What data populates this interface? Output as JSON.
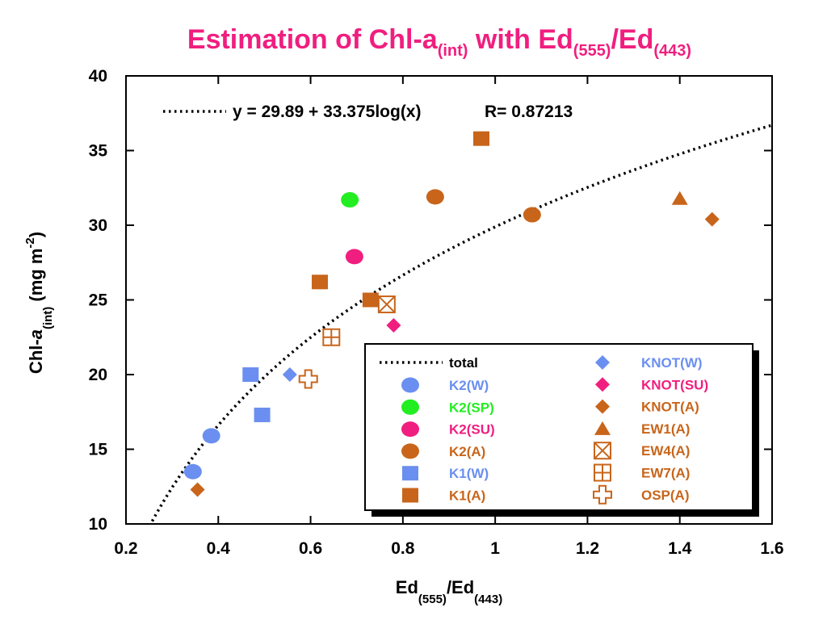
{
  "title": {
    "prefix": "Estimation of Chl-a",
    "sub1": "(int)",
    "middle": " with Ed",
    "sub2": "(555)",
    "slash": "/Ed",
    "sub3": "(443)"
  },
  "xlabel": {
    "base1": "Ed",
    "sub1": "(555)",
    "slash": "/Ed",
    "sub2": "(443)"
  },
  "ylabel": {
    "base": "Chl-",
    "italic": "a",
    "sub": "(int)",
    "unit": " (mg m",
    "sup": "-2",
    "close": ")"
  },
  "equation": {
    "formula": "y = 29.89 + 33.375log(x)",
    "r_text": "R= 0.87213"
  },
  "colors": {
    "title": "#f01e7f",
    "W": "#6b8ff0",
    "SP": "#22ee22",
    "SU": "#f01e7f",
    "A": "#c8651b"
  },
  "chart_data": {
    "type": "scatter",
    "xlim": [
      0.2,
      1.6
    ],
    "ylim": [
      10,
      40
    ],
    "x_ticks": [
      0.2,
      0.4,
      0.6,
      0.8,
      1,
      1.2,
      1.4,
      1.6
    ],
    "x_tick_labels": [
      "0.2",
      "0.4",
      "0.6",
      "0.8",
      "1",
      "1.2",
      "1.4",
      "1.6"
    ],
    "y_ticks": [
      10,
      15,
      20,
      25,
      30,
      35,
      40
    ],
    "y_tick_labels": [
      "10",
      "15",
      "20",
      "25",
      "30",
      "35",
      "40"
    ],
    "grid": false,
    "legend_position": "bottom-right",
    "fit": {
      "name": "total",
      "intercept": 29.89,
      "slope": 33.375,
      "r": 0.87213,
      "x_range": [
        0.25,
        1.6
      ]
    },
    "series": [
      {
        "name": "K2(W)",
        "marker": "circle",
        "color": "#6b8ff0",
        "points": [
          [
            0.345,
            13.5
          ],
          [
            0.385,
            15.9
          ]
        ]
      },
      {
        "name": "K2(SP)",
        "marker": "circle",
        "color": "#22ee22",
        "points": [
          [
            0.685,
            31.7
          ]
        ]
      },
      {
        "name": "K2(SU)",
        "marker": "circle",
        "color": "#f01e7f",
        "points": [
          [
            0.695,
            27.9
          ]
        ]
      },
      {
        "name": "K2(A)",
        "marker": "circle",
        "color": "#c8651b",
        "points": [
          [
            0.87,
            31.9
          ],
          [
            1.08,
            30.7
          ]
        ]
      },
      {
        "name": "K1(W)",
        "marker": "square",
        "color": "#6b8ff0",
        "points": [
          [
            0.47,
            20.0
          ],
          [
            0.495,
            17.3
          ]
        ]
      },
      {
        "name": "K1(A)",
        "marker": "square",
        "color": "#c8651b",
        "points": [
          [
            0.62,
            26.2
          ],
          [
            0.73,
            25.0
          ],
          [
            0.97,
            35.8
          ]
        ]
      },
      {
        "name": "KNOT(W)",
        "marker": "diamond",
        "color": "#6b8ff0",
        "points": [
          [
            0.555,
            20.0
          ]
        ]
      },
      {
        "name": "KNOT(SU)",
        "marker": "diamond",
        "color": "#f01e7f",
        "points": [
          [
            0.78,
            23.3
          ]
        ]
      },
      {
        "name": "KNOT(A)",
        "marker": "diamond",
        "color": "#c8651b",
        "points": [
          [
            0.355,
            12.3
          ],
          [
            1.47,
            30.4
          ]
        ]
      },
      {
        "name": "EW1(A)",
        "marker": "triangle",
        "color": "#c8651b",
        "points": [
          [
            1.4,
            31.8
          ]
        ]
      },
      {
        "name": "EW4(A)",
        "marker": "boxx",
        "color": "#c8651b",
        "points": [
          [
            0.765,
            24.7
          ]
        ]
      },
      {
        "name": "EW7(A)",
        "marker": "boxplus",
        "color": "#c8651b",
        "points": [
          [
            0.645,
            22.5
          ]
        ]
      },
      {
        "name": "OSP(A)",
        "marker": "cross",
        "color": "#c8651b",
        "points": [
          [
            0.595,
            19.7
          ]
        ]
      }
    ]
  }
}
